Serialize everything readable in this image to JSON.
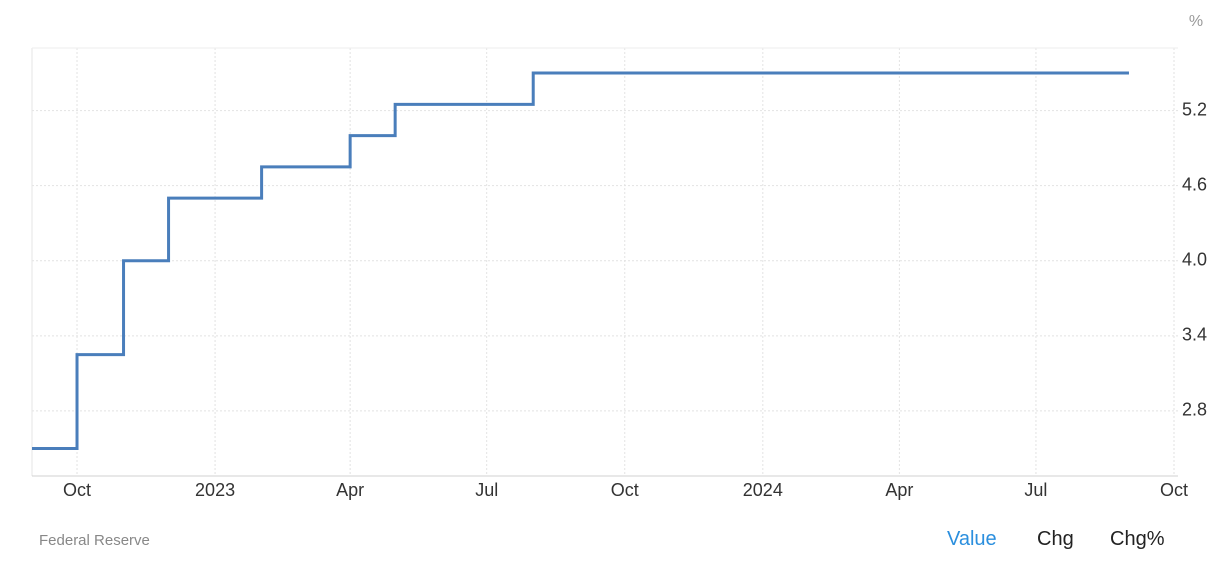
{
  "chart_data": {
    "type": "step-line",
    "y_unit": "%",
    "source": "Federal Reserve",
    "tabs": [
      "Value",
      "Chg",
      "Chg%"
    ],
    "x": [
      "2022-09",
      "2022-10",
      "2022-11",
      "2022-12",
      "2023-02",
      "2023-04",
      "2023-05",
      "2023-08",
      "2024-09"
    ],
    "values": [
      2.5,
      3.25,
      4.0,
      4.5,
      4.75,
      5.0,
      5.25,
      5.5,
      5.5
    ],
    "color": "#4a7ebb",
    "xlim": [
      "2022-09",
      "2024-10"
    ],
    "xticks": [
      {
        "value": "2022-10",
        "label": "Oct"
      },
      {
        "value": "2023-01",
        "label": "2023"
      },
      {
        "value": "2023-04",
        "label": "Apr"
      },
      {
        "value": "2023-07",
        "label": "Jul"
      },
      {
        "value": "2023-10",
        "label": "Oct"
      },
      {
        "value": "2024-01",
        "label": "2024"
      },
      {
        "value": "2024-04",
        "label": "Apr"
      },
      {
        "value": "2024-07",
        "label": "Jul"
      },
      {
        "value": "2024-10",
        "label": "Oct"
      }
    ],
    "ylim": [
      2.28,
      5.7
    ],
    "yticks": [
      2.8,
      3.4,
      {
        "value": 4,
        "label": "4.0"
      },
      4.6,
      5.2
    ],
    "grid": true
  }
}
